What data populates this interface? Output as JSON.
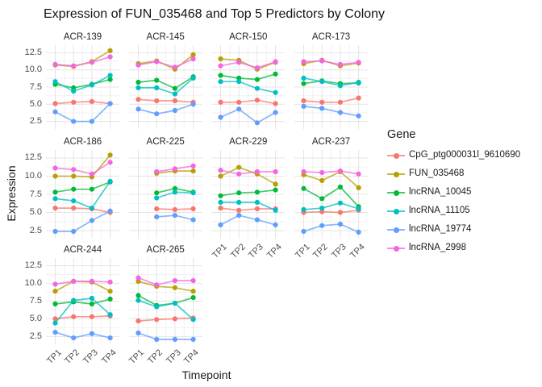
{
  "title": "Expression of FUN_035468 and Top 5 Predictors by Colony",
  "axes": {
    "x_label": "Timepoint",
    "y_label": "Expression",
    "x_ticks": [
      "TP1",
      "TP2",
      "TP3",
      "TP4"
    ],
    "y_ticks": [
      "2.5",
      "5.0",
      "7.5",
      "10.0",
      "12.5"
    ],
    "y_tick_values": [
      2.5,
      5.0,
      7.5,
      10.0,
      12.5
    ]
  },
  "legend": {
    "title": "Gene",
    "entries": [
      {
        "label": "CpG_ptg000031l_9610690",
        "color": "#F8766D"
      },
      {
        "label": "FUN_035468",
        "color": "#B79F00"
      },
      {
        "label": "lncRNA_10045",
        "color": "#00BA38"
      },
      {
        "label": "lncRNA_11105",
        "color": "#00BFC4"
      },
      {
        "label": "lncRNA_19774",
        "color": "#619CFF"
      },
      {
        "label": "lncRNA_2998",
        "color": "#F564E3"
      }
    ]
  },
  "chart_data": {
    "type": "line",
    "facet_variable": "Colony",
    "x": [
      "TP1",
      "TP2",
      "TP3",
      "TP4"
    ],
    "ylim": [
      1.4,
      13.6
    ],
    "y_breaks": [
      2.5,
      5.0,
      7.5,
      10.0,
      12.5
    ],
    "grid": "on",
    "legend_position": "right",
    "genes": [
      "CpG_ptg000031l_9610690",
      "FUN_035468",
      "lncRNA_10045",
      "lncRNA_11105",
      "lncRNA_19774",
      "lncRNA_2998"
    ],
    "facets": [
      {
        "name": "ACR-139",
        "series": [
          {
            "gene": "CpG_ptg000031l_9610690",
            "values": [
              5.1,
              5.3,
              5.4,
              5.1
            ]
          },
          {
            "gene": "FUN_035468",
            "values": [
              10.7,
              10.5,
              11.2,
              12.8
            ]
          },
          {
            "gene": "lncRNA_10045",
            "values": [
              7.9,
              7.4,
              7.9,
              8.6
            ]
          },
          {
            "gene": "lncRNA_11105",
            "values": [
              8.3,
              6.9,
              7.8,
              9.2
            ]
          },
          {
            "gene": "lncRNA_19774",
            "values": [
              3.9,
              2.5,
              2.5,
              5.1
            ]
          },
          {
            "gene": "lncRNA_2998",
            "values": [
              10.8,
              10.6,
              11.1,
              11.9
            ]
          }
        ]
      },
      {
        "name": "ACR-145",
        "series": [
          {
            "gene": "CpG_ptg000031l_9610690",
            "values": [
              5.7,
              5.5,
              5.5,
              5.3
            ]
          },
          {
            "gene": "FUN_035468",
            "values": [
              10.9,
              11.3,
              10.1,
              12.2
            ]
          },
          {
            "gene": "lncRNA_10045",
            "values": [
              8.2,
              8.5,
              7.3,
              9.0
            ]
          },
          {
            "gene": "lncRNA_11105",
            "values": [
              7.4,
              7.4,
              6.5,
              8.8
            ]
          },
          {
            "gene": "lncRNA_19774",
            "values": [
              4.3,
              3.6,
              4.1,
              5.0
            ]
          },
          {
            "gene": "lncRNA_2998",
            "values": [
              10.7,
              11.2,
              10.4,
              11.6
            ]
          }
        ]
      },
      {
        "name": "ACR-150",
        "series": [
          {
            "gene": "CpG_ptg000031l_9610690",
            "values": [
              5.3,
              5.3,
              5.6,
              5.1
            ]
          },
          {
            "gene": "FUN_035468",
            "values": [
              11.6,
              11.4,
              10.1,
              11.1
            ]
          },
          {
            "gene": "lncRNA_10045",
            "values": [
              9.2,
              8.8,
              8.6,
              9.4
            ]
          },
          {
            "gene": "lncRNA_11105",
            "values": [
              8.3,
              8.3,
              7.3,
              6.7
            ]
          },
          {
            "gene": "lncRNA_19774",
            "values": [
              3.1,
              4.3,
              2.3,
              3.8
            ]
          },
          {
            "gene": "lncRNA_2998",
            "values": [
              10.6,
              11.1,
              10.3,
              11.2
            ]
          }
        ]
      },
      {
        "name": "ACR-173",
        "series": [
          {
            "gene": "CpG_ptg000031l_9610690",
            "values": [
              5.5,
              5.3,
              5.3,
              5.9
            ]
          },
          {
            "gene": "FUN_035468",
            "values": [
              10.9,
              11.4,
              10.6,
              11.0
            ]
          },
          {
            "gene": "lncRNA_10045",
            "values": [
              8.0,
              8.4,
              8.0,
              8.1
            ]
          },
          {
            "gene": "lncRNA_11105",
            "values": [
              8.8,
              8.3,
              7.7,
              8.2
            ]
          },
          {
            "gene": "lncRNA_19774",
            "values": [
              4.7,
              4.4,
              3.8,
              3.3
            ]
          },
          {
            "gene": "lncRNA_2998",
            "values": [
              11.2,
              11.3,
              10.8,
              11.1
            ]
          }
        ]
      },
      {
        "name": "ACR-186",
        "series": [
          {
            "gene": "CpG_ptg000031l_9610690",
            "values": [
              5.6,
              5.6,
              5.5,
              5.0
            ]
          },
          {
            "gene": "FUN_035468",
            "values": [
              10.0,
              10.0,
              9.9,
              12.9
            ]
          },
          {
            "gene": "lncRNA_10045",
            "values": [
              7.8,
              8.2,
              8.2,
              9.2
            ]
          },
          {
            "gene": "lncRNA_11105",
            "values": [
              6.9,
              6.6,
              5.6,
              9.3
            ]
          },
          {
            "gene": "lncRNA_19774",
            "values": [
              2.4,
              2.4,
              3.9,
              5.2
            ]
          },
          {
            "gene": "lncRNA_2998",
            "values": [
              11.1,
              10.9,
              10.3,
              11.9
            ]
          }
        ]
      },
      {
        "name": "ACR-225",
        "series": [
          {
            "gene": "CpG_ptg000031l_9610690",
            "values": [
              null,
              5.5,
              5.4,
              5.5
            ]
          },
          {
            "gene": "FUN_035468",
            "values": [
              null,
              10.4,
              10.7,
              10.7
            ]
          },
          {
            "gene": "lncRNA_10045",
            "values": [
              null,
              7.7,
              8.3,
              7.8
            ]
          },
          {
            "gene": "lncRNA_11105",
            "values": [
              null,
              7.0,
              7.8,
              7.7
            ]
          },
          {
            "gene": "lncRNA_19774",
            "values": [
              null,
              4.4,
              4.6,
              4.0
            ]
          },
          {
            "gene": "lncRNA_2998",
            "values": [
              null,
              10.6,
              11.0,
              11.4
            ]
          }
        ]
      },
      {
        "name": "ACR-229",
        "series": [
          {
            "gene": "CpG_ptg000031l_9610690",
            "values": [
              5.6,
              5.3,
              5.5,
              5.5
            ]
          },
          {
            "gene": "FUN_035468",
            "values": [
              10.0,
              11.2,
              10.3,
              8.9
            ]
          },
          {
            "gene": "lncRNA_10045",
            "values": [
              7.3,
              7.7,
              7.8,
              8.1
            ]
          },
          {
            "gene": "lncRNA_11105",
            "values": [
              6.4,
              6.4,
              6.4,
              5.3
            ]
          },
          {
            "gene": "lncRNA_19774",
            "values": [
              3.3,
              4.6,
              4.0,
              3.3
            ]
          },
          {
            "gene": "lncRNA_2998",
            "values": [
              10.8,
              10.3,
              10.6,
              10.6
            ]
          }
        ]
      },
      {
        "name": "ACR-237",
        "series": [
          {
            "gene": "CpG_ptg000031l_9610690",
            "values": [
              5.0,
              5.1,
              5.0,
              5.3
            ]
          },
          {
            "gene": "FUN_035468",
            "values": [
              10.2,
              9.4,
              10.6,
              8.4
            ]
          },
          {
            "gene": "lncRNA_10045",
            "values": [
              8.3,
              6.9,
              8.5,
              5.8
            ]
          },
          {
            "gene": "lncRNA_11105",
            "values": [
              5.4,
              5.6,
              6.3,
              5.5
            ]
          },
          {
            "gene": "lncRNA_19774",
            "values": [
              2.4,
              3.2,
              3.4,
              2.3
            ]
          },
          {
            "gene": "lncRNA_2998",
            "values": [
              10.6,
              10.5,
              10.7,
              10.3
            ]
          }
        ]
      },
      {
        "name": "ACR-244",
        "series": [
          {
            "gene": "CpG_ptg000031l_9610690",
            "values": [
              5.0,
              5.3,
              5.3,
              5.4
            ]
          },
          {
            "gene": "FUN_035468",
            "values": [
              8.9,
              10.3,
              10.2,
              8.9
            ]
          },
          {
            "gene": "lncRNA_10045",
            "values": [
              7.1,
              7.4,
              7.1,
              7.8
            ]
          },
          {
            "gene": "lncRNA_11105",
            "values": [
              4.4,
              7.6,
              7.9,
              5.6
            ]
          },
          {
            "gene": "lncRNA_19774",
            "values": [
              3.1,
              2.3,
              2.9,
              2.3
            ]
          },
          {
            "gene": "lncRNA_2998",
            "values": [
              9.9,
              10.3,
              10.3,
              10.2
            ]
          }
        ]
      },
      {
        "name": "ACR-265",
        "series": [
          {
            "gene": "CpG_ptg000031l_9610690",
            "values": [
              4.7,
              4.9,
              5.0,
              5.1
            ]
          },
          {
            "gene": "FUN_035468",
            "values": [
              10.3,
              9.6,
              9.4,
              8.9
            ]
          },
          {
            "gene": "lncRNA_10045",
            "values": [
              8.3,
              6.9,
              7.2,
              8.0
            ]
          },
          {
            "gene": "lncRNA_11105",
            "values": [
              7.6,
              6.7,
              7.2,
              4.9
            ]
          },
          {
            "gene": "lncRNA_19774",
            "values": [
              3.0,
              2.1,
              2.1,
              2.1
            ]
          },
          {
            "gene": "lncRNA_2998",
            "values": [
              10.8,
              9.8,
              10.4,
              10.4
            ]
          }
        ]
      }
    ]
  },
  "style": {
    "grid_major_color": "#e4e4e4",
    "grid_minor_color": "#f1f1f1",
    "background": "#ffffff"
  }
}
